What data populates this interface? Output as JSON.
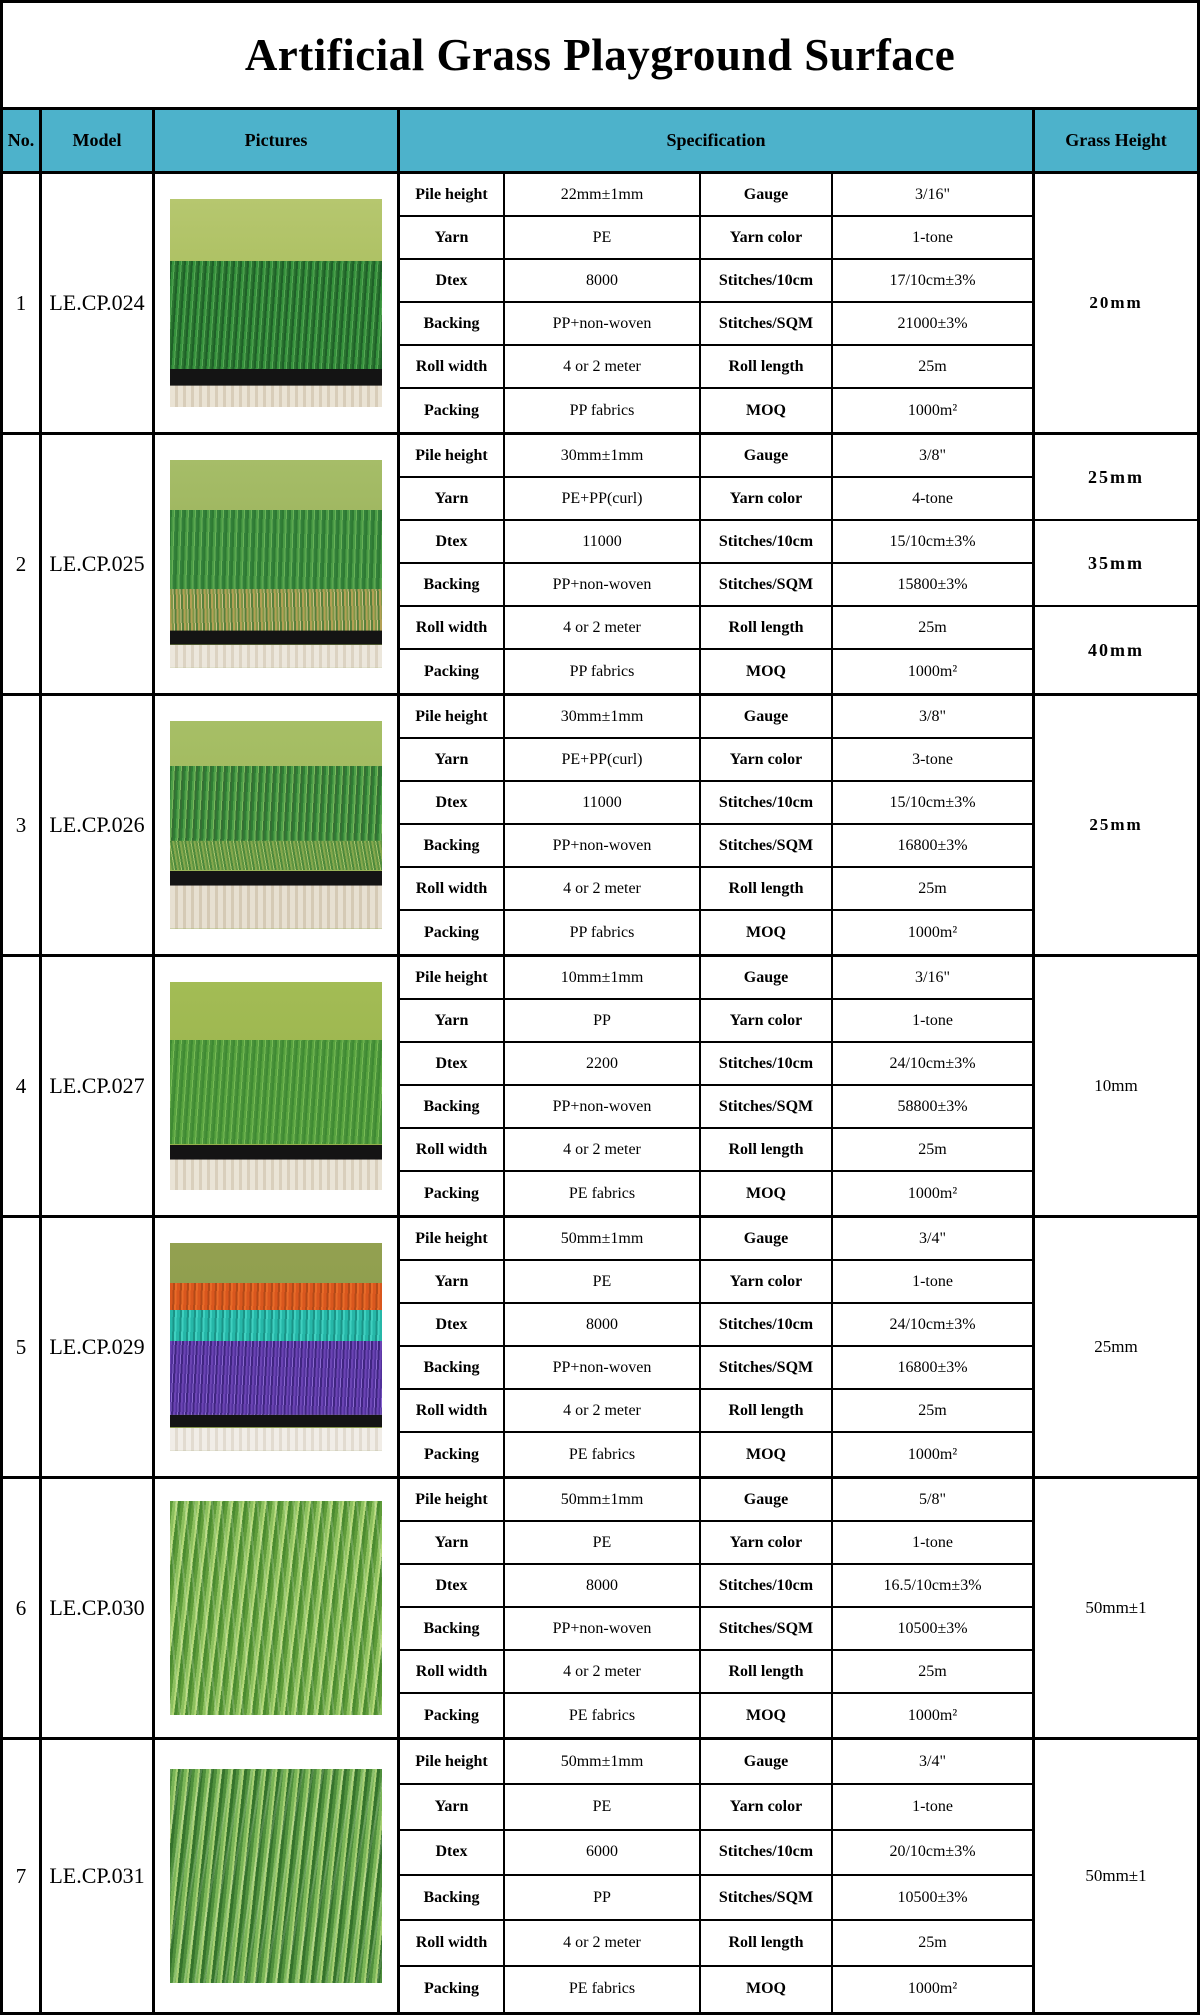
{
  "title": "Artificial Grass Playground Surface",
  "theme": {
    "header_bg": "#4db2cb",
    "border_color": "#000000",
    "page_bg": "#ffffff"
  },
  "columns": {
    "no": "No.",
    "model": "Model",
    "pictures": "Pictures",
    "specification": "Specification",
    "grass_height": "Grass Height"
  },
  "rows": [
    {
      "no": "1",
      "model": "LE.CP.024",
      "picture": {
        "description": "side view of short green turf on black backing over light wood floor, olive-green backdrop",
        "colors": [
          "#9db54d",
          "#35913c",
          "#141414",
          "#eae3d4"
        ]
      },
      "spec": [
        [
          {
            "l": "Pile height",
            "v": "22mm±1mm"
          },
          {
            "l": "Gauge",
            "v": "3/16\""
          }
        ],
        [
          {
            "l": "Yarn",
            "v": "PE"
          },
          {
            "l": "Yarn color",
            "v": "1-tone"
          }
        ],
        [
          {
            "l": "Dtex",
            "v": "8000"
          },
          {
            "l": "Stitches/10cm",
            "v": "17/10cm±3%"
          }
        ],
        [
          {
            "l": "Backing",
            "v": "PP+non-woven"
          },
          {
            "l": "Stitches/SQM",
            "v": "21000±3%"
          }
        ],
        [
          {
            "l": "Roll width",
            "v": "4 or 2 meter"
          },
          {
            "l": "Roll length",
            "v": "25m"
          }
        ],
        [
          {
            "l": "Packing",
            "v": "PP fabrics"
          },
          {
            "l": "MOQ",
            "v": "1000m²"
          }
        ]
      ],
      "grass": [
        "20mm"
      ]
    },
    {
      "no": "2",
      "model": "LE.CP.025",
      "picture": {
        "description": "side view of tall green turf with tan curly thatch on black backing over wood floor",
        "colors": [
          "#8fa94f",
          "#4a9c46",
          "#b3a055",
          "#141414",
          "#ece7dc"
        ]
      },
      "spec": [
        [
          {
            "l": "Pile height",
            "v": "30mm±1mm"
          },
          {
            "l": "Gauge",
            "v": "3/8\""
          }
        ],
        [
          {
            "l": "Yarn",
            "v": "PE+PP(curl)"
          },
          {
            "l": "Yarn color",
            "v": "4-tone"
          }
        ],
        [
          {
            "l": "Dtex",
            "v": "11000"
          },
          {
            "l": "Stitches/10cm",
            "v": "15/10cm±3%"
          }
        ],
        [
          {
            "l": "Backing",
            "v": "PP+non-woven"
          },
          {
            "l": "Stitches/SQM",
            "v": "15800±3%"
          }
        ],
        [
          {
            "l": "Roll width",
            "v": "4 or 2 meter"
          },
          {
            "l": "Roll length",
            "v": "25m"
          }
        ],
        [
          {
            "l": "Packing",
            "v": "PP fabrics"
          },
          {
            "l": "MOQ",
            "v": "1000m²"
          }
        ]
      ],
      "grass": [
        "25mm",
        "35mm",
        "40mm"
      ]
    },
    {
      "no": "3",
      "model": "LE.CP.026",
      "picture": {
        "description": "side view of green turf with yellow-green curled thatch on black backing over pale wood floor",
        "colors": [
          "#96b152",
          "#4d9f48",
          "#86a84e",
          "#141414",
          "#e7e0d1"
        ]
      },
      "spec": [
        [
          {
            "l": "Pile height",
            "v": "30mm±1mm"
          },
          {
            "l": "Gauge",
            "v": "3/8\""
          }
        ],
        [
          {
            "l": "Yarn",
            "v": "PE+PP(curl)"
          },
          {
            "l": "Yarn color",
            "v": "3-tone"
          }
        ],
        [
          {
            "l": "Dtex",
            "v": "11000"
          },
          {
            "l": "Stitches/10cm",
            "v": "15/10cm±3%"
          }
        ],
        [
          {
            "l": "Backing",
            "v": "PP+non-woven"
          },
          {
            "l": "Stitches/SQM",
            "v": "16800±3%"
          }
        ],
        [
          {
            "l": "Roll width",
            "v": "4 or 2 meter"
          },
          {
            "l": "Roll length",
            "v": "25m"
          }
        ],
        [
          {
            "l": "Packing",
            "v": "PP fabrics"
          },
          {
            "l": "MOQ",
            "v": "1000m²"
          }
        ]
      ],
      "grass": [
        "25mm"
      ]
    },
    {
      "no": "4",
      "model": "LE.CP.027",
      "picture": {
        "description": "side view of dense short bright-green turf on black backing over pale wood floor",
        "colors": [
          "#93ae47",
          "#57a23f",
          "#141414",
          "#eae4d6"
        ]
      },
      "spec": [
        [
          {
            "l": "Pile height",
            "v": "10mm±1mm"
          },
          {
            "l": "Gauge",
            "v": "3/16\""
          }
        ],
        [
          {
            "l": "Yarn",
            "v": "PP"
          },
          {
            "l": "Yarn color",
            "v": "1-tone"
          }
        ],
        [
          {
            "l": "Dtex",
            "v": "2200"
          },
          {
            "l": "Stitches/10cm",
            "v": "24/10cm±3%"
          }
        ],
        [
          {
            "l": "Backing",
            "v": "PP+non-woven"
          },
          {
            "l": "Stitches/SQM",
            "v": "58800±3%"
          }
        ],
        [
          {
            "l": "Roll width",
            "v": "4 or 2 meter"
          },
          {
            "l": "Roll length",
            "v": "25m"
          }
        ],
        [
          {
            "l": "Packing",
            "v": "PE fabrics"
          },
          {
            "l": "MOQ",
            "v": "1000m²"
          }
        ]
      ],
      "grass": [
        "10mm"
      ]
    },
    {
      "no": "5",
      "model": "LE.CP.029",
      "picture": {
        "description": "side view of colored turf: orange stripe, teal stripe and purple pile on black backing over pale floor",
        "colors": [
          "#84944a",
          "#d9571e",
          "#26b7a8",
          "#6b44b4",
          "#141414",
          "#f1ede7"
        ]
      },
      "spec": [
        [
          {
            "l": "Pile height",
            "v": "50mm±1mm"
          },
          {
            "l": "Gauge",
            "v": "3/4\""
          }
        ],
        [
          {
            "l": "Yarn",
            "v": "PE"
          },
          {
            "l": "Yarn color",
            "v": "1-tone"
          }
        ],
        [
          {
            "l": "Dtex",
            "v": "8000"
          },
          {
            "l": "Stitches/10cm",
            "v": "24/10cm±3%"
          }
        ],
        [
          {
            "l": "Backing",
            "v": "PP+non-woven"
          },
          {
            "l": "Stitches/SQM",
            "v": "16800±3%"
          }
        ],
        [
          {
            "l": "Roll width",
            "v": "4 or 2 meter"
          },
          {
            "l": "Roll length",
            "v": "25m"
          }
        ],
        [
          {
            "l": "Packing",
            "v": "PE fabrics"
          },
          {
            "l": "MOQ",
            "v": "1000m²"
          }
        ]
      ],
      "grass": [
        "25mm"
      ]
    },
    {
      "no": "6",
      "model": "LE.CP.030",
      "picture": {
        "description": "close-up of tall yellow-green grass blades filling the frame",
        "colors": [
          "#8cc05e",
          "#4a8a30",
          "#b4d878"
        ]
      },
      "spec": [
        [
          {
            "l": "Pile height",
            "v": "50mm±1mm"
          },
          {
            "l": "Gauge",
            "v": "5/8\""
          }
        ],
        [
          {
            "l": "Yarn",
            "v": "PE"
          },
          {
            "l": "Yarn color",
            "v": "1-tone"
          }
        ],
        [
          {
            "l": "Dtex",
            "v": "8000"
          },
          {
            "l": "Stitches/10cm",
            "v": "16.5/10cm±3%"
          }
        ],
        [
          {
            "l": "Backing",
            "v": "PP+non-woven"
          },
          {
            "l": "Stitches/SQM",
            "v": "10500±3%"
          }
        ],
        [
          {
            "l": "Roll width",
            "v": "4 or 2 meter"
          },
          {
            "l": "Roll length",
            "v": "25m"
          }
        ],
        [
          {
            "l": "Packing",
            "v": "PE fabrics"
          },
          {
            "l": "MOQ",
            "v": "1000m²"
          }
        ]
      ],
      "grass": [
        "50mm±1"
      ]
    },
    {
      "no": "7",
      "model": "LE.CP.031",
      "picture": {
        "description": "close-up of tall green grass blades filling the frame",
        "colors": [
          "#7ab557",
          "#35722c",
          "#a8d074"
        ]
      },
      "spec": [
        [
          {
            "l": "Pile height",
            "v": "50mm±1mm"
          },
          {
            "l": "Gauge",
            "v": "3/4\""
          }
        ],
        [
          {
            "l": "Yarn",
            "v": "PE"
          },
          {
            "l": "Yarn color",
            "v": "1-tone"
          }
        ],
        [
          {
            "l": "Dtex",
            "v": "6000"
          },
          {
            "l": "Stitches/10cm",
            "v": "20/10cm±3%"
          }
        ],
        [
          {
            "l": "Backing",
            "v": "PP"
          },
          {
            "l": "Stitches/SQM",
            "v": "10500±3%"
          }
        ],
        [
          {
            "l": "Roll width",
            "v": "4 or 2 meter"
          },
          {
            "l": "Roll length",
            "v": "25m"
          }
        ],
        [
          {
            "l": "Packing",
            "v": "PE fabrics"
          },
          {
            "l": "MOQ",
            "v": "1000m²"
          }
        ]
      ],
      "grass": [
        "50mm±1"
      ]
    }
  ]
}
